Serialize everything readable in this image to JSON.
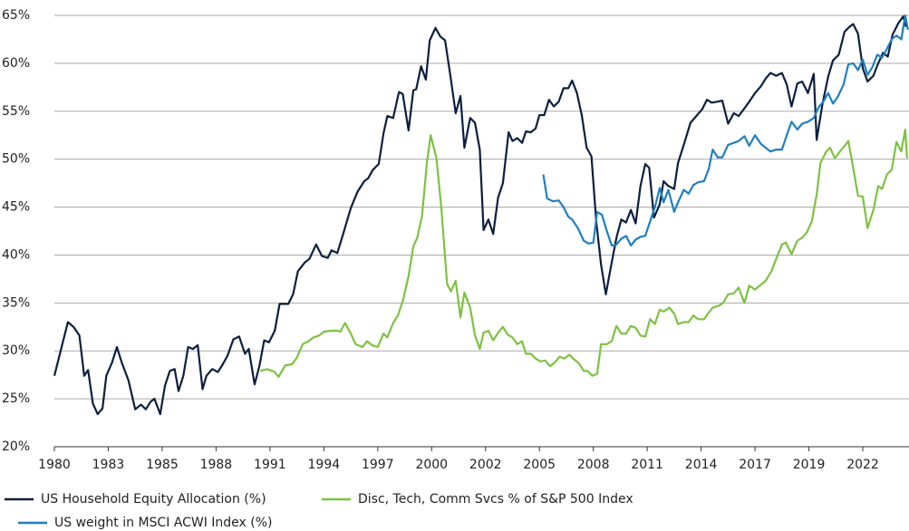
{
  "chart_data": {
    "type": "line",
    "xlim": [
      1980,
      2024.4
    ],
    "xticks": [
      {
        "value": 1980,
        "label": "1980"
      },
      {
        "value": 1982.8,
        "label": "1983"
      },
      {
        "value": 1985.6,
        "label": "1985"
      },
      {
        "value": 1988.4,
        "label": "1988"
      },
      {
        "value": 1991.2,
        "label": "1991"
      },
      {
        "value": 1994,
        "label": "1994"
      },
      {
        "value": 1996.8,
        "label": "1997"
      },
      {
        "value": 1999.6,
        "label": "2000"
      },
      {
        "value": 2002.4,
        "label": "2002"
      },
      {
        "value": 2005.2,
        "label": "2005"
      },
      {
        "value": 2008,
        "label": "2008"
      },
      {
        "value": 2010.8,
        "label": "2011"
      },
      {
        "value": 2013.6,
        "label": "2014"
      },
      {
        "value": 2016.4,
        "label": "2017"
      },
      {
        "value": 2019.2,
        "label": "2019"
      },
      {
        "value": 2022,
        "label": "2022"
      }
    ],
    "ylim": [
      20,
      65
    ],
    "yticks": [
      {
        "value": 20,
        "label": "20%"
      },
      {
        "value": 25,
        "label": "25%"
      },
      {
        "value": 30,
        "label": "30%"
      },
      {
        "value": 35,
        "label": "35%"
      },
      {
        "value": 40,
        "label": "40%"
      },
      {
        "value": 45,
        "label": "45%"
      },
      {
        "value": 50,
        "label": "50%"
      },
      {
        "value": 55,
        "label": "55%"
      },
      {
        "value": 60,
        "label": "60%"
      },
      {
        "value": 65,
        "label": "65%"
      }
    ],
    "grid": true,
    "legend": "bottom",
    "series": [
      {
        "name": "US Household Equity Allocation (%)",
        "color": "#0b1f3f",
        "x": [
          1980,
          1980.7,
          1981.0,
          1981.3,
          1981.55,
          1981.75,
          1982,
          1982.25,
          1982.5,
          1982.7,
          1983,
          1983.25,
          1983.5,
          1983.85,
          1984.2,
          1984.5,
          1984.75,
          1985,
          1985.2,
          1985.5,
          1985.75,
          1986,
          1986.25,
          1986.45,
          1986.7,
          1986.95,
          1987.2,
          1987.45,
          1987.7,
          1987.9,
          1988.2,
          1988.5,
          1988.75,
          1989,
          1989.3,
          1989.6,
          1989.9,
          1990.1,
          1990.4,
          1990.65,
          1990.9,
          1991.15,
          1991.45,
          1991.7,
          1992.15,
          1992.4,
          1992.65,
          1993,
          1993.25,
          1993.6,
          1993.9,
          1994.2,
          1994.4,
          1994.7,
          1995.05,
          1995.4,
          1995.75,
          1996.1,
          1996.3,
          1996.55,
          1996.85,
          1997.1,
          1997.3,
          1997.6,
          1997.9,
          1998.1,
          1998.4,
          1998.65,
          1998.8,
          1999.05,
          1999.3,
          1999.5,
          1999.8,
          2000.05,
          2000.3,
          2000.55,
          2000.85,
          2001.1,
          2001.3,
          2001.6,
          2001.85,
          2002.1,
          2002.3,
          2002.55,
          2002.8,
          2003.05,
          2003.3,
          2003.6,
          2003.8,
          2004.05,
          2004.3,
          2004.5,
          2004.75,
          2005,
          2005.2,
          2005.45,
          2005.7,
          2005.95,
          2006.2,
          2006.45,
          2006.7,
          2006.9,
          2007.15,
          2007.4,
          2007.65,
          2007.9,
          2008.15,
          2008.4,
          2008.65,
          2008.95,
          2009.2,
          2009.45,
          2009.7,
          2009.95,
          2010.2,
          2010.45,
          2010.7,
          2010.9,
          2011.15,
          2011.45,
          2011.65,
          2011.9,
          2012.2,
          2012.4,
          2012.7,
          2013.05,
          2013.35,
          2013.65,
          2013.9,
          2014.15,
          2014.45,
          2014.7,
          2015,
          2015.3,
          2015.55,
          2015.85,
          2016.1,
          2016.4,
          2016.7,
          2016.95,
          2017.2,
          2017.5,
          2017.8,
          2018.05,
          2018.3,
          2018.6,
          2018.85,
          2019.15,
          2019.45,
          2019.6,
          2019.9,
          2020.2,
          2020.45,
          2020.75,
          2021.05,
          2021.3,
          2021.5,
          2021.75,
          2022,
          2022.25,
          2022.55,
          2022.8,
          2023.05,
          2023.3,
          2023.55,
          2023.85,
          2024.1,
          2024.25
        ],
        "values": [
          27.4,
          33,
          32.5,
          31.6,
          27.4,
          28,
          24.5,
          23.4,
          24,
          27.4,
          28.8,
          30.4,
          28.8,
          26.9,
          23.9,
          24.4,
          23.9,
          24.7,
          25,
          23.4,
          26.4,
          27.9,
          28.1,
          25.8,
          27.4,
          30.4,
          30.2,
          30.6,
          26,
          27.4,
          28.1,
          27.8,
          28.6,
          29.5,
          31.2,
          31.5,
          29.7,
          30.2,
          26.5,
          28.4,
          31.1,
          30.9,
          32.1,
          34.9,
          34.9,
          35.9,
          38.3,
          39.2,
          39.6,
          41.1,
          39.9,
          39.7,
          40.5,
          40.2,
          42.5,
          44.9,
          46.6,
          47.7,
          48,
          48.9,
          49.5,
          52.7,
          54.5,
          54.3,
          57,
          56.8,
          53,
          57.2,
          57.3,
          59.7,
          58.3,
          62.4,
          63.7,
          62.8,
          62.4,
          59,
          54.8,
          56.6,
          51.2,
          54.3,
          53.8,
          51,
          42.6,
          43.7,
          42.2,
          46,
          47.5,
          52.8,
          51.9,
          52.2,
          51.7,
          52.9,
          52.8,
          53.2,
          54.6,
          54.6,
          56.2,
          55.5,
          56,
          57.4,
          57.4,
          58.2,
          56.9,
          54.6,
          51.2,
          50.3,
          43.5,
          39,
          35.9,
          39.2,
          41.8,
          43.7,
          43.4,
          44.7,
          43.3,
          47.2,
          49.5,
          49.1,
          43.9,
          45.3,
          47.7,
          47.2,
          46.9,
          49.6,
          51.5,
          53.8,
          54.5,
          55.2,
          56.2,
          55.9,
          56,
          56.1,
          53.7,
          54.8,
          54.5,
          55.3,
          56,
          56.9,
          57.6,
          58.4,
          59,
          58.7,
          59,
          57.8,
          55.5,
          57.9,
          58.1,
          56.9,
          58.9,
          52,
          55.7,
          58.6,
          60.3,
          60.9,
          63.3,
          63.8,
          64.1,
          63.1,
          59.5,
          58.1,
          58.7,
          60,
          61.1,
          60.7,
          63,
          64.2,
          64.9,
          63.8
        ]
      },
      {
        "name": "Disc, Tech, Comm Svcs % of S&P 500 Index",
        "color": "#7dc242",
        "x": [
          1990.7,
          1991.05,
          1991.45,
          1991.65,
          1992,
          1992.35,
          1992.6,
          1992.9,
          1993.2,
          1993.45,
          1993.75,
          1994,
          1994.35,
          1994.7,
          1994.85,
          1995.1,
          1995.4,
          1995.65,
          1996,
          1996.25,
          1996.5,
          1996.8,
          1997.1,
          1997.3,
          1997.6,
          1997.85,
          1998.1,
          1998.4,
          1998.65,
          1998.85,
          1999.1,
          1999.35,
          1999.55,
          1999.85,
          2000.1,
          2000.4,
          2000.6,
          2000.85,
          2001.1,
          2001.3,
          2001.6,
          2001.85,
          2002.1,
          2002.3,
          2002.55,
          2002.8,
          2003.05,
          2003.3,
          2003.55,
          2003.8,
          2004.05,
          2004.3,
          2004.5,
          2004.75,
          2005,
          2005.25,
          2005.5,
          2005.75,
          2006,
          2006.25,
          2006.5,
          2006.75,
          2006.95,
          2007.25,
          2007.5,
          2007.7,
          2007.95,
          2008.2,
          2008.4,
          2008.7,
          2008.95,
          2009.2,
          2009.45,
          2009.7,
          2009.95,
          2010.2,
          2010.45,
          2010.7,
          2010.95,
          2011.2,
          2011.45,
          2011.65,
          2011.95,
          2012.2,
          2012.4,
          2012.7,
          2012.95,
          2013.2,
          2013.45,
          2013.75,
          2014,
          2014.2,
          2014.5,
          2014.75,
          2015,
          2015.3,
          2015.55,
          2015.85,
          2016.1,
          2016.4,
          2016.7,
          2016.95,
          2017.25,
          2017.5,
          2017.8,
          2018,
          2018.3,
          2018.6,
          2018.85,
          2019.1,
          2019.35,
          2019.6,
          2019.8,
          2020.1,
          2020.3,
          2020.55,
          2020.85,
          2021.1,
          2021.25,
          2021.5,
          2021.75,
          2022,
          2022.25,
          2022.55,
          2022.8,
          2023,
          2023.25,
          2023.5,
          2023.75,
          2024,
          2024.2,
          2024.3
        ],
        "values": [
          27.9,
          28.1,
          27.8,
          27.3,
          28.5,
          28.6,
          29.3,
          30.7,
          31,
          31.4,
          31.6,
          32,
          32.1,
          32.1,
          32,
          32.9,
          31.8,
          30.7,
          30.4,
          31,
          30.6,
          30.4,
          31.8,
          31.4,
          32.9,
          33.7,
          35.2,
          37.8,
          40.9,
          41.8,
          44.1,
          49.6,
          52.5,
          50.1,
          45,
          37,
          36.2,
          37.3,
          33.5,
          36.1,
          34.5,
          31.6,
          30.2,
          31.9,
          32.1,
          31.1,
          31.9,
          32.5,
          31.7,
          31.4,
          30.7,
          31,
          29.7,
          29.7,
          29.2,
          28.9,
          29,
          28.4,
          28.8,
          29.4,
          29.2,
          29.6,
          29.2,
          28.7,
          27.9,
          27.9,
          27.4,
          27.6,
          30.7,
          30.7,
          31,
          32.6,
          31.8,
          31.8,
          32.6,
          32.4,
          31.6,
          31.5,
          33.3,
          32.8,
          34.3,
          34.1,
          34.5,
          33.9,
          32.8,
          33,
          33,
          33.7,
          33.3,
          33.3,
          34,
          34.5,
          34.7,
          35,
          35.9,
          36,
          36.6,
          35,
          36.8,
          36.4,
          36.9,
          37.3,
          38.3,
          39.6,
          41.1,
          41.3,
          40.1,
          41.5,
          41.8,
          42.4,
          43.5,
          46.3,
          49.6,
          50.8,
          51.2,
          50.1,
          50.9,
          51.5,
          51.9,
          49.1,
          46.2,
          46.1,
          42.8,
          44.7,
          47.2,
          46.9,
          48.4,
          48.9,
          51.8,
          50.8,
          53.1,
          50.1
        ]
      },
      {
        "name": "US weight in MSCI ACWI Index  (%)",
        "color": "#1f7fbf",
        "x": [
          2005.4,
          2005.6,
          2005.9,
          2006.2,
          2006.45,
          2006.7,
          2006.9,
          2007.2,
          2007.5,
          2007.75,
          2008,
          2008.2,
          2008.45,
          2008.7,
          2008.95,
          2009.2,
          2009.45,
          2009.7,
          2009.95,
          2010.2,
          2010.45,
          2010.7,
          2010.95,
          2011.2,
          2011.45,
          2011.65,
          2011.9,
          2012.2,
          2012.4,
          2012.7,
          2012.95,
          2013.2,
          2013.45,
          2013.75,
          2014,
          2014.2,
          2014.45,
          2014.7,
          2015,
          2015.3,
          2015.55,
          2015.85,
          2016.1,
          2016.4,
          2016.7,
          2016.95,
          2017.2,
          2017.5,
          2017.8,
          2018.05,
          2018.3,
          2018.6,
          2018.85,
          2019.15,
          2019.45,
          2019.7,
          2019.95,
          2020.2,
          2020.45,
          2020.7,
          2021,
          2021.25,
          2021.5,
          2021.75,
          2022,
          2022.25,
          2022.5,
          2022.75,
          2023,
          2023.25,
          2023.5,
          2023.75,
          2024,
          2024.2,
          2024.35
        ],
        "values": [
          48.4,
          45.9,
          45.6,
          45.7,
          45,
          44,
          43.7,
          42.8,
          41.5,
          41.2,
          41.3,
          44.5,
          44.2,
          42.5,
          41,
          41.1,
          41.7,
          42,
          41,
          41.6,
          41.9,
          42,
          43.5,
          45,
          47,
          45.5,
          46.8,
          44.5,
          45.5,
          46.8,
          46.4,
          47.3,
          47.6,
          47.7,
          49,
          51,
          50.2,
          50.2,
          51.5,
          51.7,
          51.9,
          52.4,
          51.4,
          52.5,
          51.6,
          51.2,
          50.8,
          51,
          51,
          52.5,
          53.9,
          53.1,
          53.7,
          53.9,
          54.3,
          55.4,
          56,
          56.9,
          55.8,
          56.5,
          57.8,
          59.9,
          60,
          59.3,
          60.4,
          58.8,
          59.6,
          60.9,
          60.6,
          61.5,
          62.5,
          62.9,
          62.5,
          65,
          63.5
        ]
      }
    ]
  }
}
